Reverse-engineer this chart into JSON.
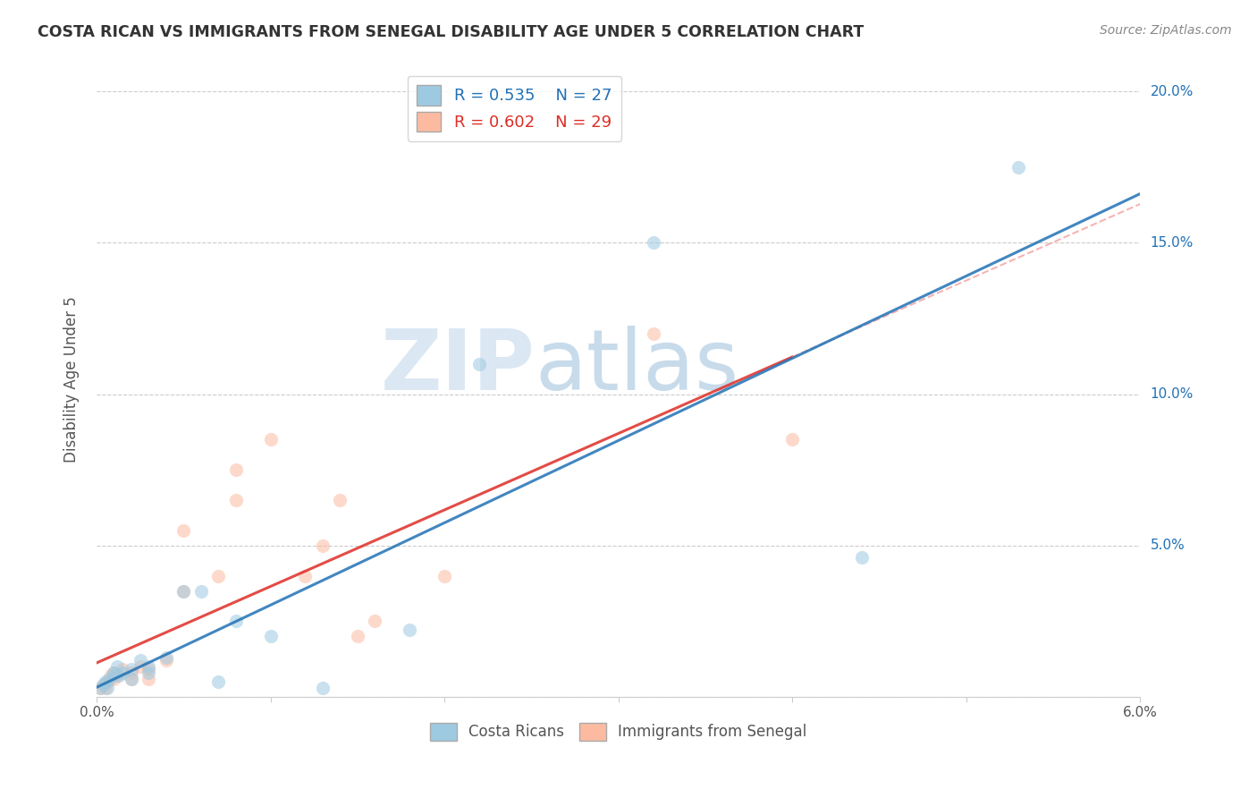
{
  "title": "COSTA RICAN VS IMMIGRANTS FROM SENEGAL DISABILITY AGE UNDER 5 CORRELATION CHART",
  "source": "Source: ZipAtlas.com",
  "ylabel": "Disability Age Under 5",
  "xlim": [
    0.0,
    0.06
  ],
  "ylim": [
    0.0,
    0.21
  ],
  "xticks": [
    0.0,
    0.01,
    0.02,
    0.03,
    0.04,
    0.05,
    0.06
  ],
  "yticks": [
    0.0,
    0.05,
    0.1,
    0.15,
    0.2
  ],
  "x_ticklabels": [
    "0.0%",
    "",
    "",
    "",
    "",
    "",
    "6.0%"
  ],
  "y_ticklabels_right": [
    "",
    "5.0%",
    "10.0%",
    "15.0%",
    "20.0%"
  ],
  "legend_blue_r": "R = 0.535",
  "legend_blue_n": "N = 27",
  "legend_pink_r": "R = 0.602",
  "legend_pink_n": "N = 29",
  "blue_scatter_x": [
    0.0002,
    0.0004,
    0.0005,
    0.0006,
    0.0007,
    0.001,
    0.001,
    0.0012,
    0.0013,
    0.0015,
    0.002,
    0.002,
    0.0025,
    0.003,
    0.003,
    0.004,
    0.005,
    0.006,
    0.007,
    0.008,
    0.01,
    0.013,
    0.018,
    0.022,
    0.032,
    0.044,
    0.053
  ],
  "blue_scatter_y": [
    0.003,
    0.004,
    0.005,
    0.003,
    0.006,
    0.008,
    0.007,
    0.01,
    0.007,
    0.008,
    0.009,
    0.006,
    0.012,
    0.01,
    0.008,
    0.013,
    0.035,
    0.035,
    0.005,
    0.025,
    0.02,
    0.003,
    0.022,
    0.11,
    0.15,
    0.046,
    0.175
  ],
  "pink_scatter_x": [
    0.0002,
    0.0004,
    0.0005,
    0.0006,
    0.0008,
    0.001,
    0.001,
    0.0012,
    0.0015,
    0.002,
    0.002,
    0.0025,
    0.003,
    0.003,
    0.004,
    0.005,
    0.005,
    0.007,
    0.008,
    0.008,
    0.01,
    0.012,
    0.013,
    0.014,
    0.015,
    0.016,
    0.02,
    0.032,
    0.04
  ],
  "pink_scatter_y": [
    0.003,
    0.004,
    0.003,
    0.005,
    0.007,
    0.006,
    0.008,
    0.007,
    0.009,
    0.006,
    0.008,
    0.01,
    0.009,
    0.006,
    0.012,
    0.055,
    0.035,
    0.04,
    0.065,
    0.075,
    0.085,
    0.04,
    0.05,
    0.065,
    0.02,
    0.025,
    0.04,
    0.12,
    0.085
  ],
  "blue_color": "#9ecae1",
  "pink_color": "#fcbba1",
  "blue_line_color": "#2171b5",
  "pink_line_color": "#de2d26",
  "ref_line_color": "#f4a0a0",
  "scatter_alpha": 0.55,
  "scatter_size": 120,
  "watermark_zip": "ZIP",
  "watermark_atlas": "atlas",
  "background_color": "#ffffff",
  "grid_color": "#cccccc"
}
